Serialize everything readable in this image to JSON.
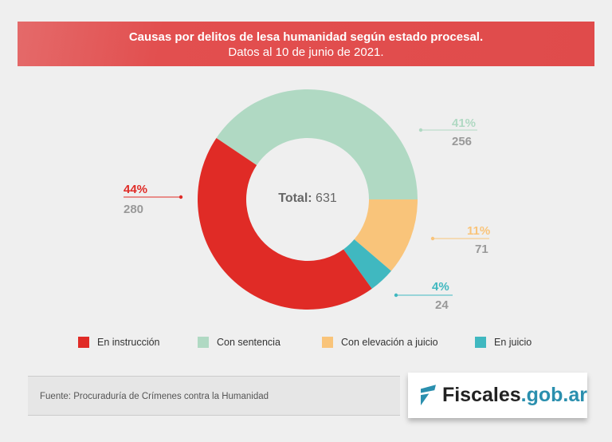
{
  "header": {
    "title": "Causas por delitos de lesa humanidad según estado procesal.",
    "subtitle": "Datos al 10 de junio de 2021."
  },
  "chart_data": {
    "type": "pie",
    "donut": true,
    "center_label": "Total:",
    "total": "631",
    "categories": [
      "En instrucción",
      "Con sentencia",
      "Con elevación a juicio",
      "En juicio"
    ],
    "values": [
      280,
      256,
      71,
      24
    ],
    "percent_labels": [
      "44%",
      "41%",
      "11%",
      "4%"
    ],
    "colors": [
      "#e02b26",
      "#b0d9c3",
      "#f9c47a",
      "#40b8c0"
    ],
    "legend_position": "bottom"
  },
  "footer": {
    "source": "Fuente: Procuraduría de Crímenes contra la Humanidad",
    "logo_text_a": "Fiscales",
    "logo_text_b": ".gob.ar"
  }
}
